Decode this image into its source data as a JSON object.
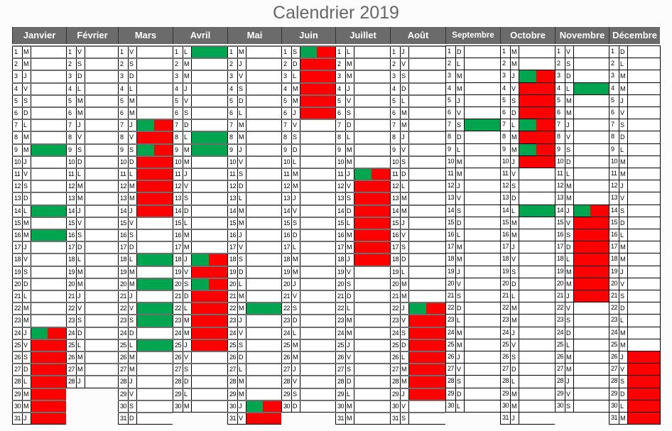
{
  "title": "Calendrier 2019",
  "colors": {
    "green": "#00a550",
    "red": "#ff0000",
    "header": "#6b6b6b"
  },
  "legend_codes": {
    "G": "green",
    "R": "red",
    "GR": "green-red split"
  },
  "months": [
    {
      "name": "Janvier",
      "weekdays": "MMJVSDLMMJVSDLMMJVSDLMMJVSDLMMJ",
      "marks": {
        "9": "G",
        "14": "G",
        "16": "G",
        "24": "GR",
        "25": "R",
        "26": "R",
        "27": "R",
        "28": "R",
        "29": "R",
        "30": "R",
        "31": "R"
      }
    },
    {
      "name": "Février",
      "weekdays": "VSDLMMJVSDLMMJVSDLMMJVSDLMMJ",
      "marks": {}
    },
    {
      "name": "Mars",
      "weekdays": "VSDLMMJVSDLMMJVSDLMMJVSDLMMJVSD",
      "marks": {
        "7": "GR",
        "8": "R",
        "9": "GR",
        "10": "R",
        "11": "R",
        "12": "R",
        "13": "R",
        "14": "R",
        "18": "G",
        "20": "G",
        "22": "G",
        "23": "G",
        "25": "G"
      }
    },
    {
      "name": "Avril",
      "weekdays": "LMMJVSDLMMJVSDLMMJVSDLMMJVSDLM",
      "marks": {
        "1": "G",
        "8": "G",
        "9": "G",
        "18": "GR",
        "19": "R",
        "20": "GR",
        "21": "R",
        "22": "R",
        "23": "R",
        "24": "R",
        "25": "R"
      }
    },
    {
      "name": "Mai",
      "weekdays": "MJVSDLMMJVSDLMMJVSDLMMJVSDLMMJV",
      "marks": {
        "22": "G",
        "30": "GR",
        "31": "R"
      }
    },
    {
      "name": "Juin",
      "weekdays": "SDLMMJVSDLMMJVSDLMMJVSDLMMJVSD",
      "marks": {
        "1": "GR",
        "2": "R",
        "3": "R",
        "4": "R",
        "5": "R",
        "6": "R"
      }
    },
    {
      "name": "Juillet",
      "weekdays": "LMMJVSDLMMJVSDLMMJVSDLMMJVSDLMM",
      "marks": {
        "11": "GR",
        "12": "R",
        "13": "R",
        "14": "R",
        "15": "R",
        "16": "R",
        "17": "R",
        "18": "R"
      }
    },
    {
      "name": "Août",
      "weekdays": "JVSDLMMJVSDLMMJVSDLMMJVSDLMMJVS",
      "marks": {
        "22": "GR",
        "23": "R",
        "24": "R",
        "25": "R",
        "26": "R",
        "27": "R",
        "28": "R",
        "29": "R"
      }
    },
    {
      "name": "Septembre",
      "weekdays": "DLMMJVSDLMMJVSDLMMJVSDLMMJVSDL",
      "marks": {
        "7": "G"
      }
    },
    {
      "name": "Octobre",
      "weekdays": "MMJVSDLMMJVSDLMMJVSDLMMJVSDLMMJ",
      "marks": {
        "3": "GR",
        "4": "R",
        "5": "R",
        "6": "R",
        "7": "GR",
        "8": "R",
        "9": "GR",
        "10": "R",
        "14": "G"
      }
    },
    {
      "name": "Novembre",
      "weekdays": "VSDLMMJVSDLMMJVSDLMMJVSDLMMJVS",
      "marks": {
        "4": "G",
        "14": "GR",
        "15": "R",
        "16": "R",
        "17": "R",
        "18": "R",
        "19": "R",
        "20": "R",
        "21": "R"
      }
    },
    {
      "name": "Décembre",
      "weekdays": "DLMMJVSDLMMJVSDLMMJVSDLMMJVSDLM",
      "marks": {
        "26": "R",
        "27": "R",
        "28": "R",
        "29": "R",
        "30": "R",
        "31": "R"
      }
    }
  ]
}
